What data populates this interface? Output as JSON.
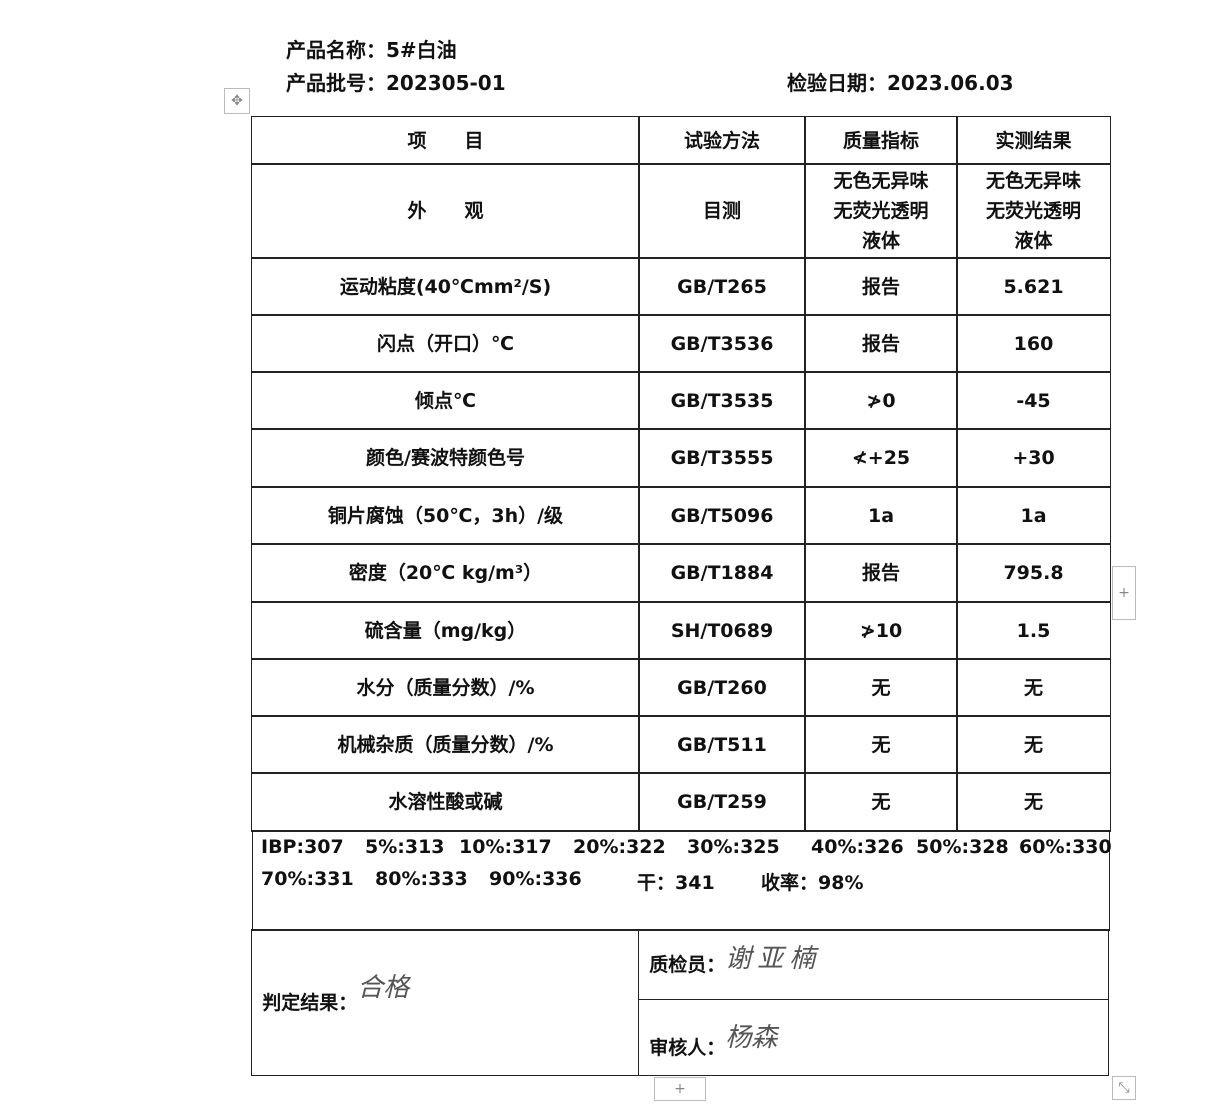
{
  "header": {
    "product_name": "产品名称：5#白油",
    "batch_no": "产品批号：202305-01",
    "inspection_date": "检验日期：2023.06.03"
  },
  "table": {
    "columns": [
      "项　　目",
      "试验方法",
      "质量指标",
      "实测结果"
    ],
    "rows": [
      [
        "外　　观",
        "目测",
        "无色无异味\n无荧光透明\n液体",
        "无色无异味\n无荧光透明\n液体"
      ],
      [
        "运动粘度(40℃mm²/S)",
        "GB/T265",
        "报告",
        "5.621"
      ],
      [
        "闪点（开口）℃",
        "GB/T3536",
        "报告",
        "160"
      ],
      [
        "倾点℃",
        "GB/T3535",
        "≯0",
        "-45"
      ],
      [
        "颜色/赛波特颜色号",
        "GB/T3555",
        "≮+25",
        "+30"
      ],
      [
        "铜片腐蚀（50℃，3h）/级",
        "GB/T5096",
        "1a",
        "1a"
      ],
      [
        "密度（20℃ kg/m³）",
        "GB/T1884",
        "报告",
        "795.8"
      ],
      [
        "硫含量（mg/kg）",
        "SH/T0689",
        "≯10",
        "1.5"
      ],
      [
        "水分（质量分数）/%",
        "GB/T260",
        "无",
        "无"
      ],
      [
        "机械杂质（质量分数）/%",
        "GB/T511",
        "无",
        "无"
      ],
      [
        "水溶性酸或碱",
        "GB/T259",
        "无",
        "无"
      ]
    ]
  },
  "distillation": [
    "IBP:307",
    "5%:313",
    "10%:317",
    "20%:322",
    "30%:325",
    "40%:326",
    "50%:328",
    "60%:330",
    "70%:331",
    "80%:333",
    "90%:336",
    "干：341",
    "收率：98%"
  ],
  "footer": {
    "judgment_label": "判定结果：",
    "judgment_signature": "合格",
    "inspector_label": "质检员：",
    "inspector_signature": "谢亚楠",
    "reviewer_label": "审核人：",
    "reviewer_signature": "杨森"
  },
  "handles": {
    "move": "✥",
    "add": "+",
    "resize": "⤡"
  }
}
